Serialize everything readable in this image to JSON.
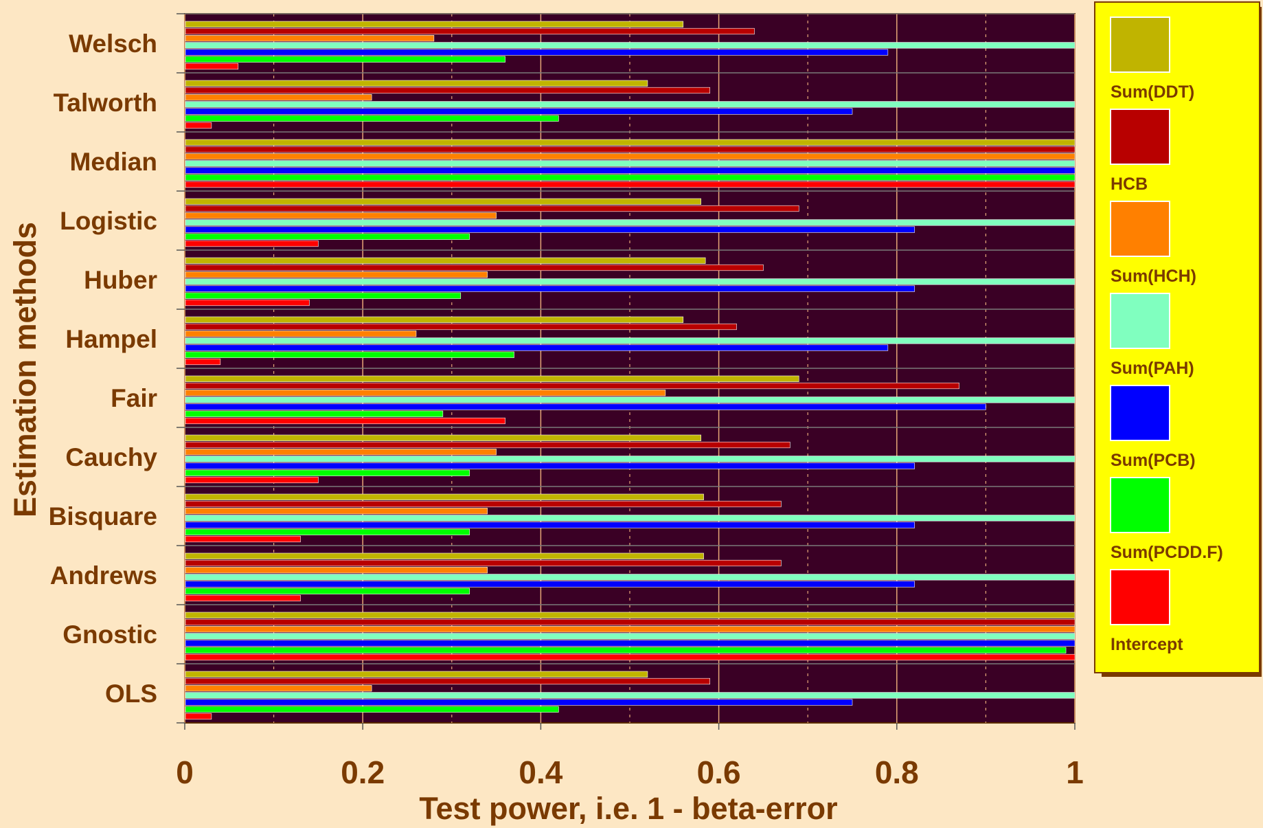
{
  "chart_data": {
    "type": "bar",
    "orientation": "horizontal",
    "title": "",
    "xlabel": "Test power, i.e. 1 - beta-error",
    "ylabel": "Estimation methods",
    "xlim": [
      0,
      1
    ],
    "x_ticks": [
      "0",
      "0.2",
      "0.4",
      "0.6",
      "0.8",
      "1"
    ],
    "grid": true,
    "legend_position": "right",
    "categories": [
      "Welsch",
      "Talworth",
      "Median",
      "Logistic",
      "Huber",
      "Hampel",
      "Fair",
      "Cauchy",
      "Bisquare",
      "Andrews",
      "Gnostic",
      "OLS"
    ],
    "series": [
      {
        "name": "",
        "color": "#c0b400",
        "values": [
          0.56,
          0.52,
          1.0,
          0.58,
          0.585,
          0.56,
          0.69,
          0.58,
          0.583,
          0.583,
          1.0,
          0.52
        ]
      },
      {
        "name": "Sum(DDT)",
        "color": "#b80000",
        "values": [
          0.64,
          0.59,
          1.0,
          0.69,
          0.65,
          0.62,
          0.87,
          0.68,
          0.67,
          0.67,
          1.0,
          0.59
        ]
      },
      {
        "name": "HCB",
        "color": "#ff8000",
        "values": [
          0.28,
          0.21,
          1.0,
          0.35,
          0.34,
          0.26,
          0.54,
          0.35,
          0.34,
          0.34,
          1.0,
          0.21
        ]
      },
      {
        "name": "Sum(HCH)",
        "color": "#80ffbf",
        "values": [
          1.0,
          1.0,
          1.0,
          1.0,
          1.0,
          1.0,
          1.0,
          1.0,
          1.0,
          1.0,
          1.0,
          1.0
        ]
      },
      {
        "name": "Sum(PAH)",
        "color": "#0000ff",
        "values": [
          0.79,
          0.75,
          1.0,
          0.82,
          0.82,
          0.79,
          0.9,
          0.82,
          0.82,
          0.82,
          1.0,
          0.75
        ]
      },
      {
        "name": "Sum(PCB)",
        "color": "#00ff00",
        "values": [
          0.36,
          0.42,
          1.0,
          0.32,
          0.31,
          0.37,
          0.29,
          0.32,
          0.32,
          0.32,
          0.99,
          0.42
        ]
      },
      {
        "name": "Sum(PCDD.F)",
        "color": "#ff0000",
        "values": [
          0.06,
          0.03,
          1.0,
          0.15,
          0.14,
          0.04,
          0.36,
          0.15,
          0.13,
          0.13,
          1.0,
          0.03
        ]
      }
    ],
    "legend_labels": [
      "Sum(DDT)",
      "HCB",
      "Sum(HCH)",
      "Sum(PAH)",
      "Sum(PCB)",
      "Sum(PCDD.F)",
      "Intercept"
    ],
    "colors": {
      "background": "#fde7c4",
      "plot_background": "#3a0025",
      "legend_background": "#ffff00",
      "text": "#7a3a00"
    }
  }
}
